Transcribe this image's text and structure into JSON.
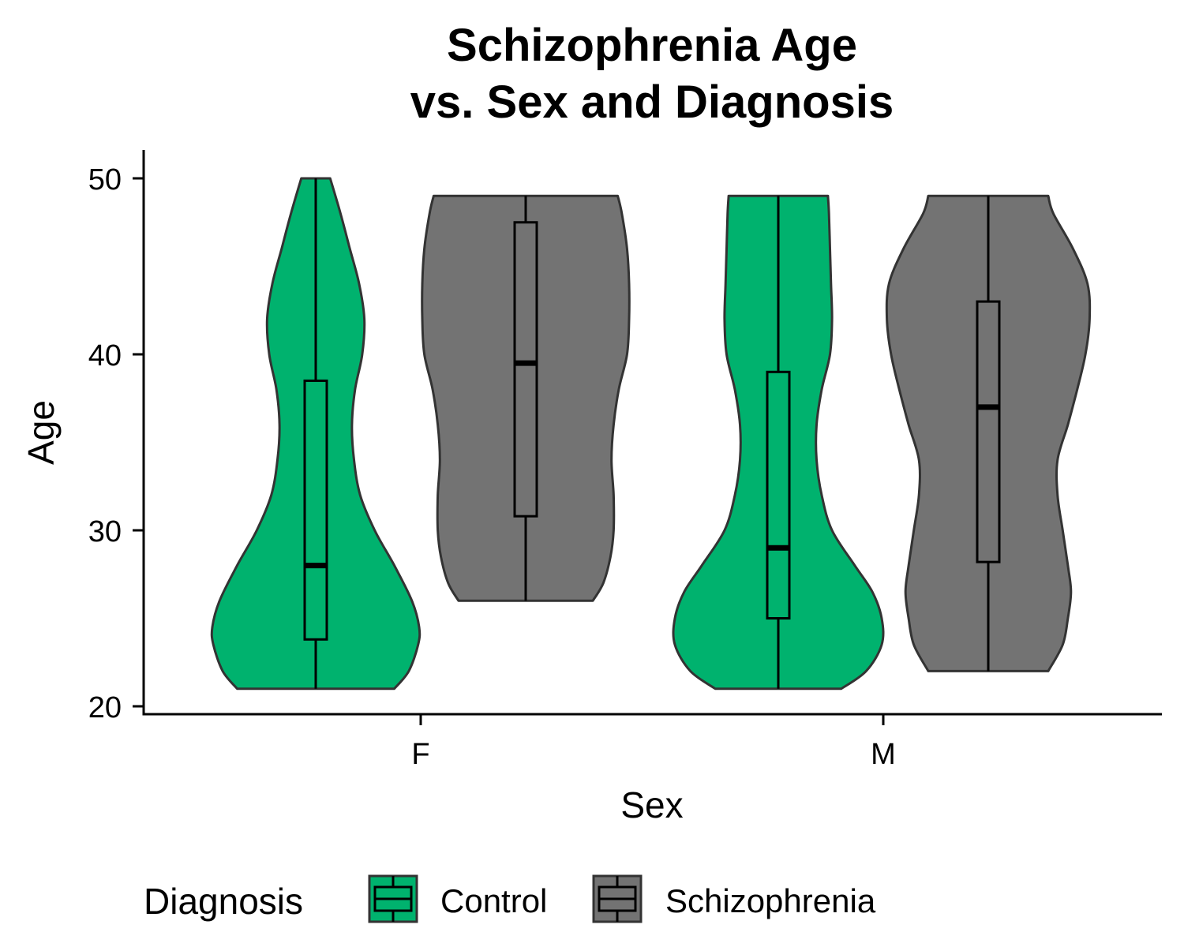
{
  "chart_data": {
    "type": "violin",
    "title_lines": [
      "Schizophrenia Age",
      "vs. Sex and Diagnosis"
    ],
    "xlabel": "Sex",
    "ylabel": "Age",
    "categories": [
      "F",
      "M"
    ],
    "ylim": [
      19.5,
      51.5
    ],
    "yticks": [
      20,
      30,
      40,
      50
    ],
    "ytick_labels": [
      "20",
      "30",
      "40",
      "50"
    ],
    "grid": false,
    "legend": {
      "title": "Diagnosis",
      "position": "bottom",
      "entries": [
        {
          "label": "Control",
          "color": "#00b26e"
        },
        {
          "label": "Schizophrenia",
          "color": "#737373"
        }
      ]
    },
    "series": [
      {
        "name": "Control",
        "color": "#00b26e",
        "groups": [
          {
            "category": "F",
            "min": 21,
            "q1": 23.8,
            "median": 28,
            "q3": 38.5,
            "max": 50,
            "density_profile": [
              [
                21,
                0.76
              ],
              [
                22,
                0.9
              ],
              [
                23.5,
                0.99
              ],
              [
                24.5,
                1.0
              ],
              [
                26,
                0.93
              ],
              [
                28,
                0.76
              ],
              [
                30,
                0.57
              ],
              [
                32,
                0.43
              ],
              [
                34,
                0.37
              ],
              [
                36,
                0.35
              ],
              [
                38,
                0.38
              ],
              [
                40,
                0.45
              ],
              [
                42,
                0.47
              ],
              [
                44,
                0.42
              ],
              [
                46,
                0.33
              ],
              [
                48,
                0.24
              ],
              [
                50,
                0.14
              ]
            ]
          },
          {
            "category": "M",
            "min": 21,
            "q1": 25,
            "median": 29,
            "q3": 39,
            "max": 49,
            "density_profile": [
              [
                21,
                0.61
              ],
              [
                22,
                0.85
              ],
              [
                23.5,
                1.0
              ],
              [
                25,
                1.0
              ],
              [
                26.5,
                0.91
              ],
              [
                28,
                0.74
              ],
              [
                30,
                0.52
              ],
              [
                32,
                0.42
              ],
              [
                34,
                0.37
              ],
              [
                36,
                0.37
              ],
              [
                38,
                0.42
              ],
              [
                40,
                0.5
              ],
              [
                42,
                0.52
              ],
              [
                44,
                0.51
              ],
              [
                46,
                0.5
              ],
              [
                48,
                0.49
              ],
              [
                49,
                0.48
              ]
            ]
          }
        ]
      },
      {
        "name": "Schizophrenia",
        "color": "#737373",
        "groups": [
          {
            "category": "F",
            "min": 26,
            "q1": 30.8,
            "median": 39.5,
            "q3": 47.5,
            "max": 49,
            "density_profile": [
              [
                26,
                0.65
              ],
              [
                27,
                0.75
              ],
              [
                28.5,
                0.82
              ],
              [
                30,
                0.85
              ],
              [
                32,
                0.85
              ],
              [
                34,
                0.83
              ],
              [
                36,
                0.85
              ],
              [
                38,
                0.9
              ],
              [
                40,
                0.98
              ],
              [
                42,
                1.0
              ],
              [
                44,
                1.0
              ],
              [
                46,
                0.98
              ],
              [
                48,
                0.93
              ],
              [
                49,
                0.89
              ]
            ]
          },
          {
            "category": "M",
            "min": 22,
            "q1": 28.2,
            "median": 37,
            "q3": 43,
            "max": 49,
            "density_profile": [
              [
                22,
                0.58
              ],
              [
                23.5,
                0.72
              ],
              [
                25,
                0.77
              ],
              [
                26.5,
                0.8
              ],
              [
                28,
                0.77
              ],
              [
                30,
                0.72
              ],
              [
                32,
                0.67
              ],
              [
                34,
                0.67
              ],
              [
                36,
                0.77
              ],
              [
                38,
                0.86
              ],
              [
                40,
                0.94
              ],
              [
                42,
                0.98
              ],
              [
                44,
                0.96
              ],
              [
                46,
                0.82
              ],
              [
                48,
                0.63
              ],
              [
                49,
                0.58
              ]
            ]
          }
        ]
      }
    ]
  }
}
